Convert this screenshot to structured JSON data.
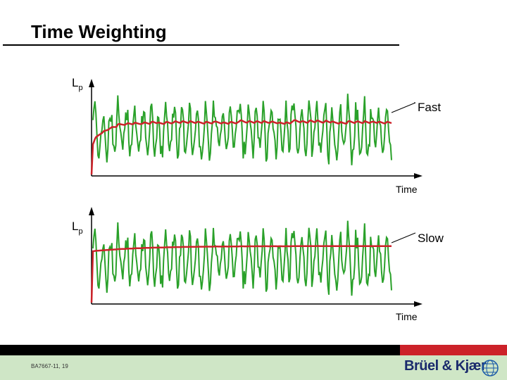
{
  "title": "Time Weighting",
  "panels": [
    {
      "ylabel_main": "L",
      "ylabel_sub": "p",
      "curve_label": "Fast",
      "xlabel": "Time"
    },
    {
      "ylabel_main": "L",
      "ylabel_sub": "p",
      "curve_label": "Slow",
      "xlabel": "Time"
    }
  ],
  "footer": {
    "code": "BA7667-11, 19",
    "brand": "Brüel & Kjær"
  },
  "colors": {
    "signal": "#2aa12a",
    "weighted": "#cc2229",
    "footer_band": "#cfe6c6",
    "footer_red": "#cc2229",
    "brand_text": "#1a2a6c"
  }
}
